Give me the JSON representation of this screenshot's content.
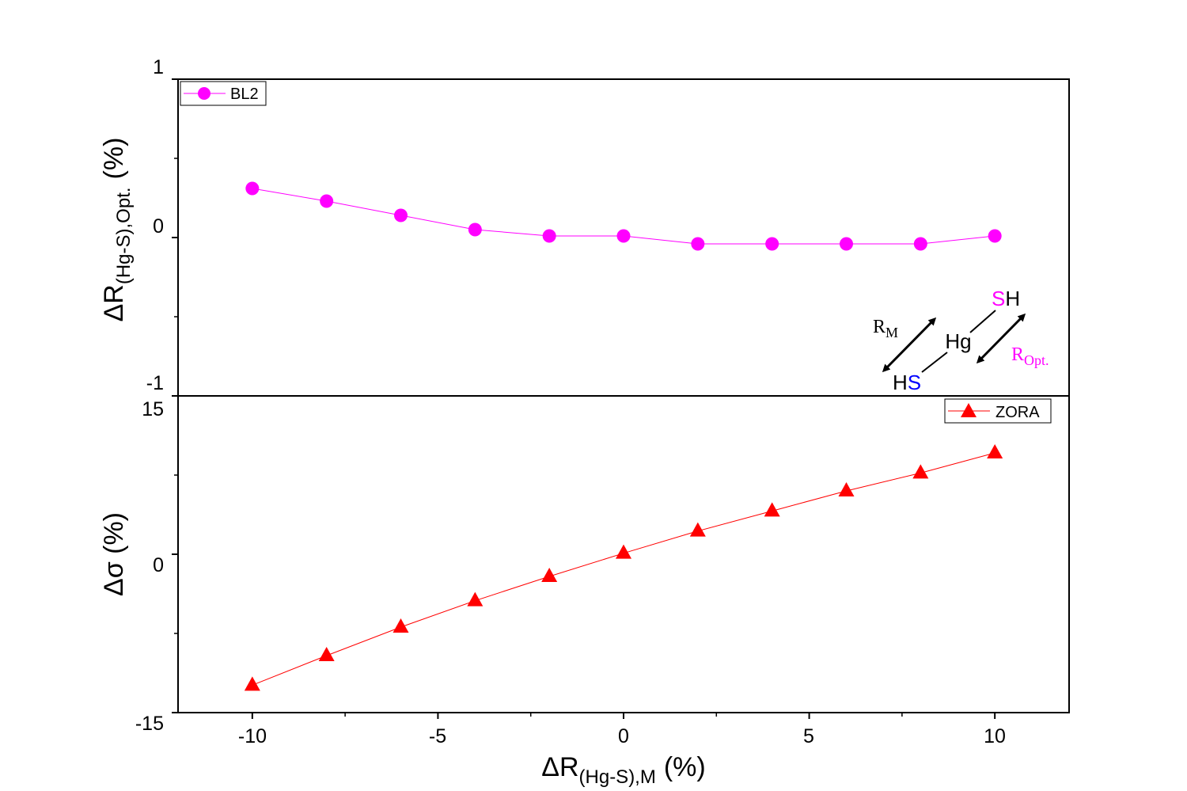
{
  "chart_data": [
    {
      "type": "line",
      "panel": "top",
      "series": [
        {
          "name": "BL2",
          "color": "#ff00ff",
          "marker": "circle",
          "x": [
            -10,
            -8,
            -6,
            -4,
            -2,
            0,
            2,
            4,
            6,
            8,
            10
          ],
          "y": [
            0.31,
            0.23,
            0.14,
            0.05,
            0.01,
            0.01,
            -0.04,
            -0.04,
            -0.04,
            -0.04,
            0.01
          ]
        }
      ],
      "ylabel_main": "ΔR",
      "ylabel_sub": "(Hg-S),Opt.",
      "ylabel_unit": "(%)",
      "ylim": [
        -1,
        1
      ],
      "yticks": [
        -1,
        0,
        1
      ],
      "ytick_labels": [
        "-1",
        "0",
        "1"
      ],
      "legend_position": "top-left"
    },
    {
      "type": "line",
      "panel": "bottom",
      "series": [
        {
          "name": "ZORA",
          "color": "#ff0000",
          "marker": "triangle",
          "x": [
            -10,
            -8,
            -6,
            -4,
            -2,
            0,
            2,
            4,
            6,
            8,
            10
          ],
          "y": [
            -12.4,
            -9.6,
            -6.9,
            -4.4,
            -2.1,
            0.1,
            2.2,
            4.1,
            6.0,
            7.7,
            9.6
          ]
        }
      ],
      "ylabel": "Δσ (%)",
      "ylim": [
        -15,
        15
      ],
      "yticks": [
        -15,
        0,
        15
      ],
      "ytick_labels": [
        "-15",
        "0",
        "15"
      ],
      "legend_position": "top-right"
    }
  ],
  "x_axis": {
    "label_main": "ΔR",
    "label_sub": "(Hg-S),M",
    "label_unit": "(%)",
    "xlim": [
      -12,
      12
    ],
    "xticks": [
      -10,
      -5,
      0,
      5,
      10
    ],
    "xtick_labels": [
      "-10",
      "-5",
      "0",
      "5",
      "10"
    ]
  },
  "inset": {
    "molecule_atoms": {
      "hg": "Hg",
      "sh_s": "S",
      "sh_h": "H",
      "hs_h": "H",
      "hs_s": "S"
    },
    "r_m_main": "R",
    "r_m_sub": "M",
    "r_opt_main": "R",
    "r_opt_sub": "Opt.",
    "colors": {
      "magenta": "#ff00ff",
      "blue": "#0000ff",
      "black": "#000000"
    }
  }
}
